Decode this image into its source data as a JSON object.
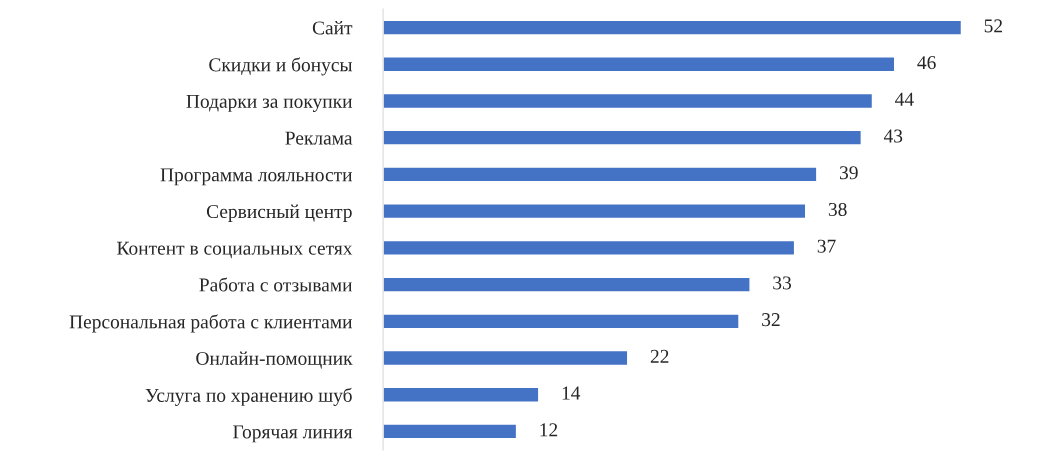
{
  "chart_data": {
    "type": "bar",
    "orientation": "horizontal",
    "categories": [
      "Сайт",
      "Скидки и бонусы",
      "Подарки за покупки",
      "Реклама",
      "Программа лояльности",
      "Сервисный центр",
      "Контент в социальных сетях",
      "Работа с отзывами",
      "Персональная работа с клиентами",
      "Онлайн-помощник",
      "Услуга по хранению шуб",
      "Горячая линия"
    ],
    "values": [
      52,
      46,
      44,
      43,
      39,
      38,
      37,
      33,
      32,
      22,
      14,
      12
    ],
    "color": "#4472c4",
    "data_labels": true,
    "grid": false,
    "legend": false,
    "tick_labels": "y"
  }
}
